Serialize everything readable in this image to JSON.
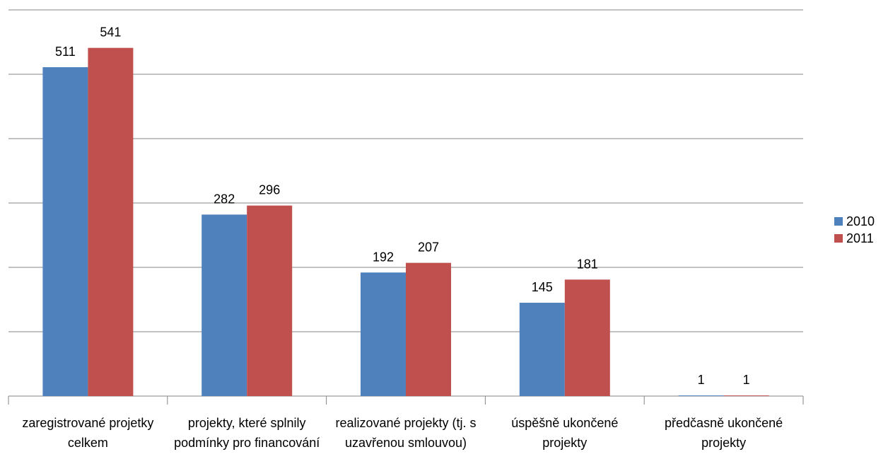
{
  "chart_data": {
    "type": "bar",
    "categories": [
      "zaregistrované projetky celkem",
      "projekty, které splnily podmínky pro financování",
      "realizované projekty (tj. s uzavřenou smlouvou)",
      "úspěšně ukončené projekty",
      "předčasně ukončené projekty"
    ],
    "series": [
      {
        "name": "2010",
        "color": "#4f81bd",
        "values": [
          511,
          282,
          192,
          145,
          1
        ]
      },
      {
        "name": "2011",
        "color": "#c0504d",
        "values": [
          541,
          296,
          207,
          181,
          1
        ]
      }
    ],
    "ylim": [
      0,
      600
    ],
    "yticks": [
      0,
      100,
      200,
      300,
      400,
      500,
      600
    ],
    "grid": true,
    "legend": "right"
  }
}
